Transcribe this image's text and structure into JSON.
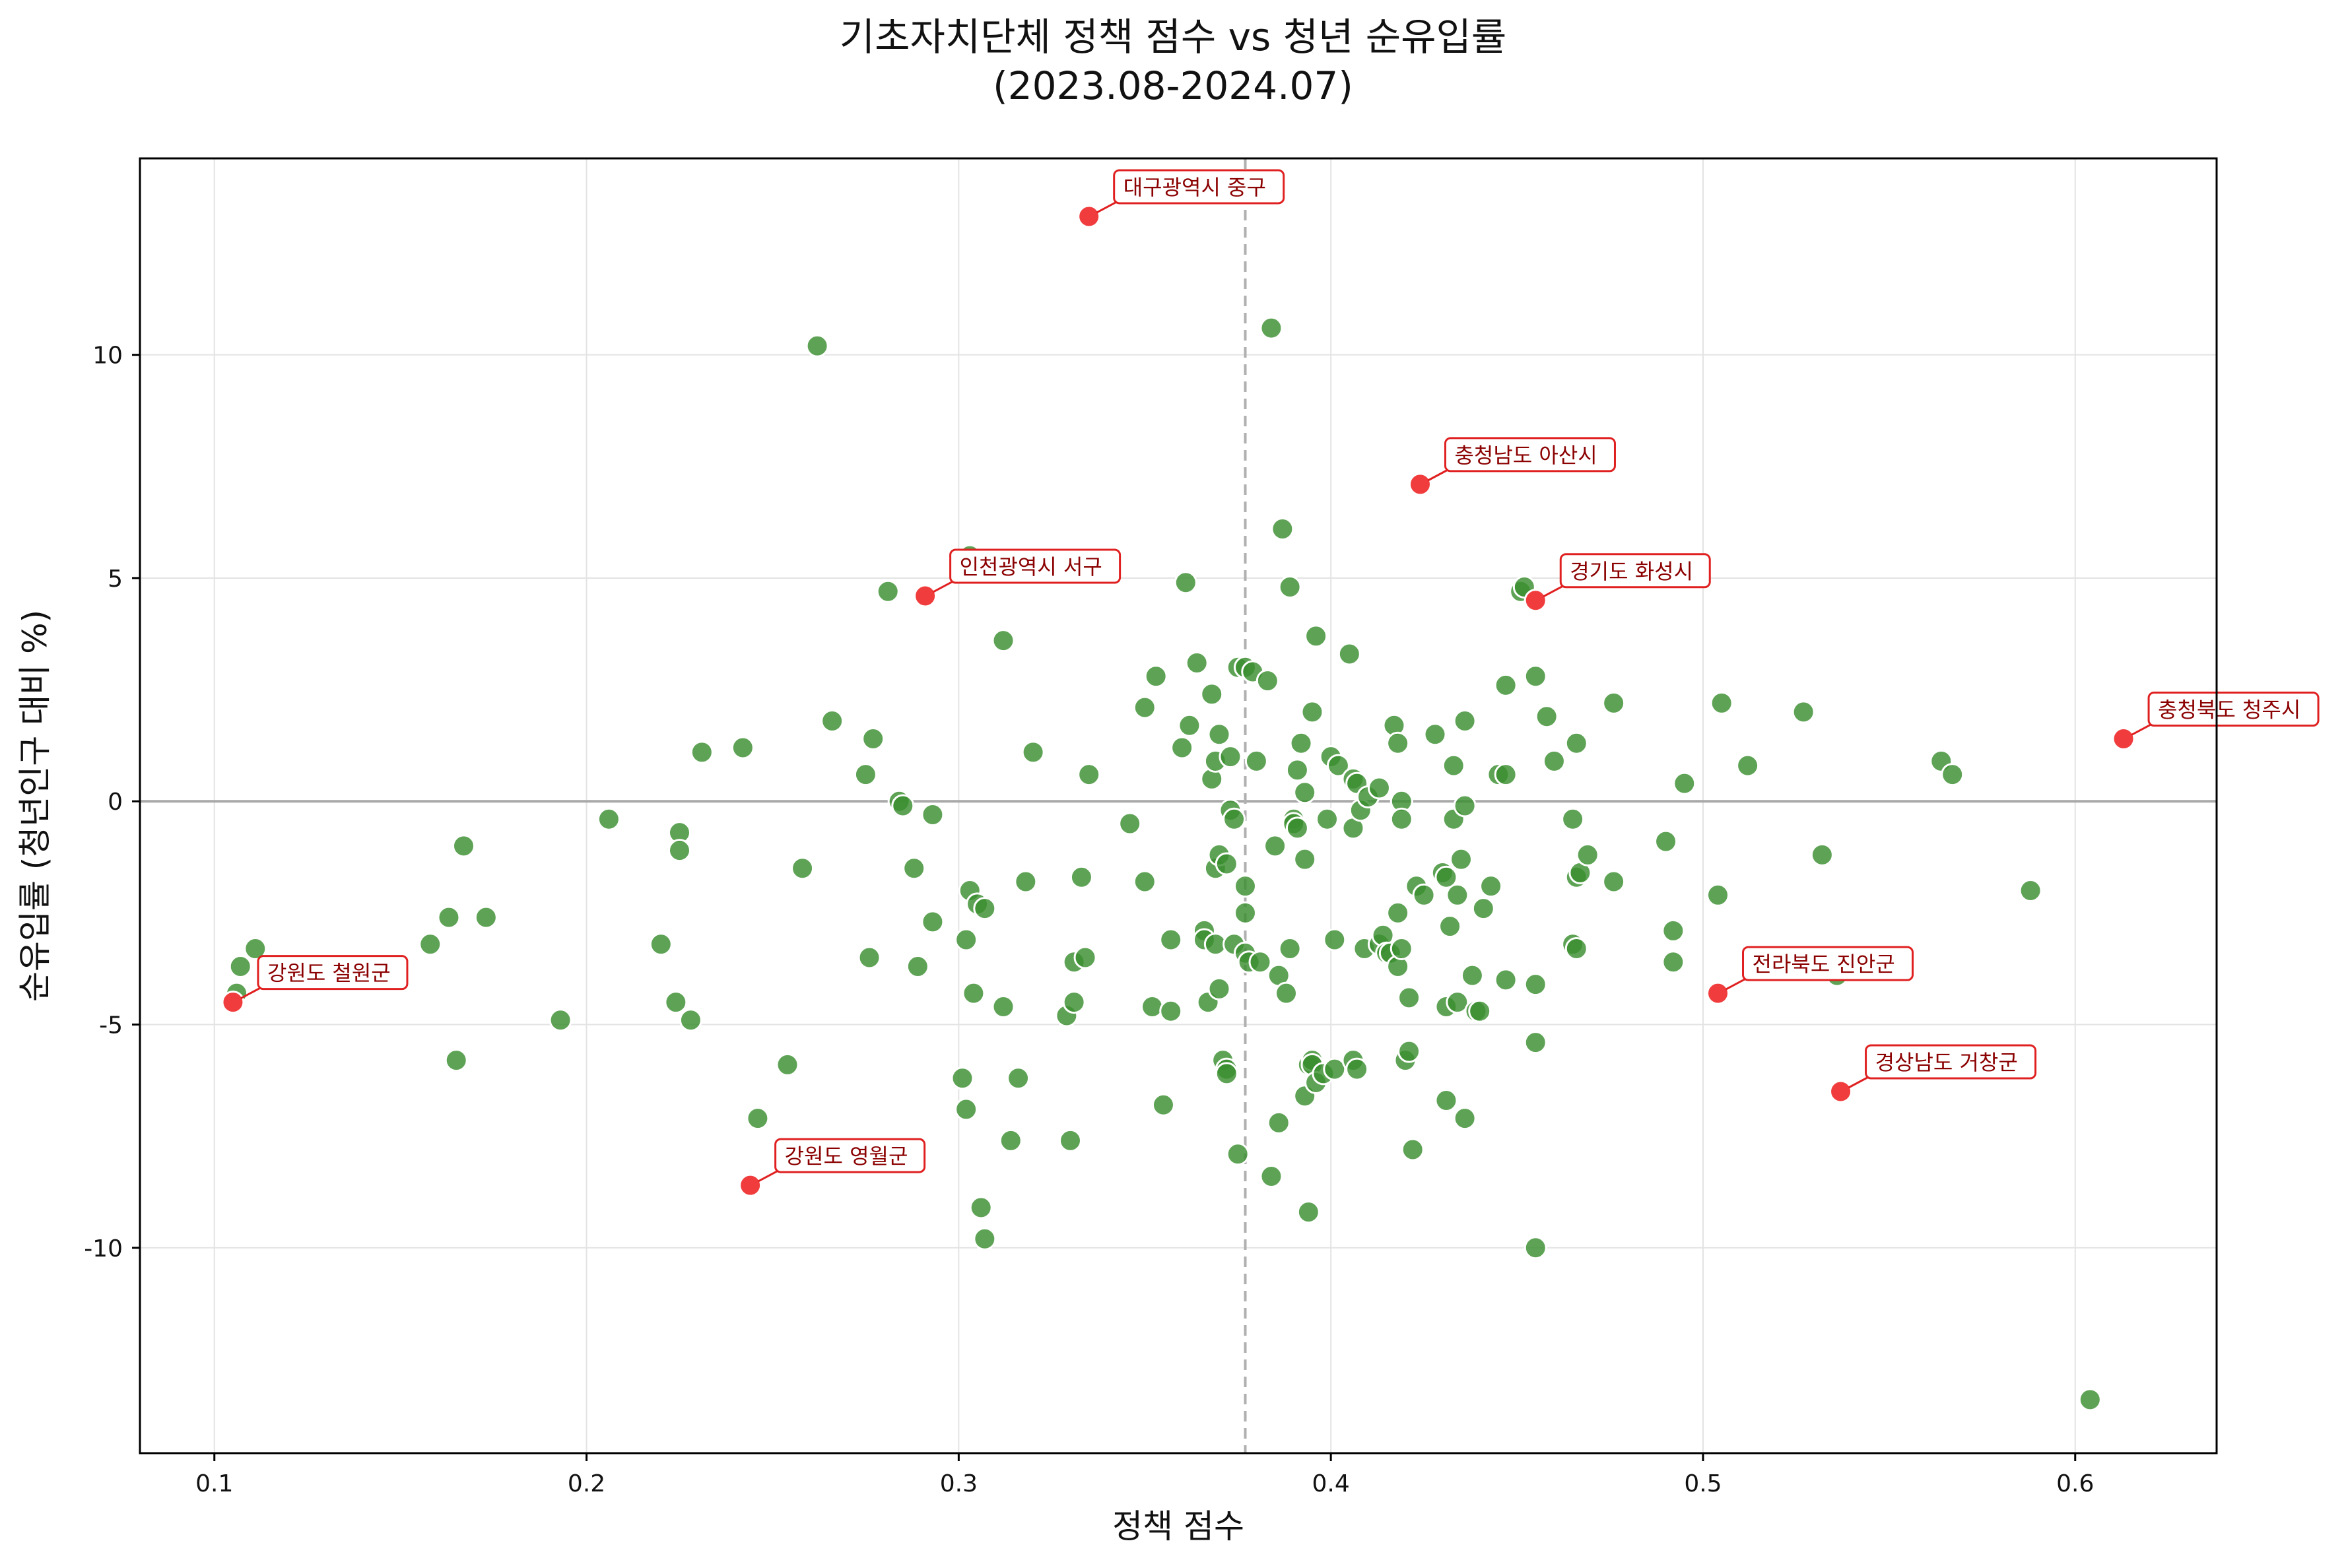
{
  "chart_data": {
    "type": "scatter",
    "title_line1": "기초자치단체 정책 점수 vs 청년 순유입률",
    "title_line2": "(2023.08-2024.07)",
    "xlabel": "정책 점수",
    "ylabel": "순유입률 (청년인구 대비 %)",
    "xlim": [
      0.08,
      0.638
    ],
    "ylim": [
      -14.6,
      14.4
    ],
    "xticks": [
      0.1,
      0.2,
      0.3,
      0.4,
      0.5,
      0.6
    ],
    "xtick_labels": [
      "0.1",
      "0.2",
      "0.3",
      "0.4",
      "0.5",
      "0.6"
    ],
    "yticks": [
      10,
      5,
      0,
      -5,
      -10
    ],
    "ytick_labels": [
      "10",
      "5",
      "0",
      "-5",
      "-10"
    ],
    "grid": true,
    "reference_lines": {
      "horizontal_y": 0,
      "vertical_x_dashed": 0.377
    },
    "colors": {
      "normal": "#3a8f2f",
      "highlight": "#f03c3c",
      "annotation_border": "#e02020"
    },
    "series": [
      {
        "points": [
          [
            0.107,
            -3.7
          ],
          [
            0.111,
            -3.3
          ],
          [
            0.106,
            -4.3
          ],
          [
            0.158,
            -3.2
          ],
          [
            0.163,
            -2.6
          ],
          [
            0.167,
            -1.0
          ],
          [
            0.173,
            -2.6
          ],
          [
            0.165,
            -5.8
          ],
          [
            0.193,
            -4.9
          ],
          [
            0.206,
            -0.4
          ],
          [
            0.22,
            -3.2
          ],
          [
            0.225,
            -0.7
          ],
          [
            0.225,
            -1.1
          ],
          [
            0.224,
            -4.5
          ],
          [
            0.228,
            -4.9
          ],
          [
            0.231,
            1.1
          ],
          [
            0.242,
            1.2
          ],
          [
            0.246,
            -7.1
          ],
          [
            0.254,
            -5.9
          ],
          [
            0.258,
            -1.5
          ],
          [
            0.262,
            10.2
          ],
          [
            0.266,
            1.8
          ],
          [
            0.275,
            0.6
          ],
          [
            0.277,
            1.4
          ],
          [
            0.276,
            -3.5
          ],
          [
            0.281,
            4.7
          ],
          [
            0.284,
            0.0
          ],
          [
            0.285,
            -0.1
          ],
          [
            0.288,
            -1.5
          ],
          [
            0.289,
            -3.7
          ],
          [
            0.293,
            -2.7
          ],
          [
            0.293,
            -0.3
          ],
          [
            0.303,
            5.5
          ],
          [
            0.301,
            -6.2
          ],
          [
            0.302,
            -6.9
          ],
          [
            0.302,
            -3.1
          ],
          [
            0.303,
            -2.0
          ],
          [
            0.305,
            -2.3
          ],
          [
            0.307,
            -2.4
          ],
          [
            0.304,
            -4.3
          ],
          [
            0.306,
            -9.1
          ],
          [
            0.307,
            -9.8
          ],
          [
            0.312,
            3.6
          ],
          [
            0.312,
            -4.6
          ],
          [
            0.314,
            -7.6
          ],
          [
            0.316,
            -6.2
          ],
          [
            0.318,
            -1.8
          ],
          [
            0.32,
            1.1
          ],
          [
            0.329,
            -4.8
          ],
          [
            0.33,
            -7.6
          ],
          [
            0.331,
            -3.6
          ],
          [
            0.331,
            -4.5
          ],
          [
            0.333,
            -1.7
          ],
          [
            0.334,
            -3.5
          ],
          [
            0.335,
            0.6
          ],
          [
            0.346,
            -0.5
          ],
          [
            0.35,
            -1.8
          ],
          [
            0.35,
            2.1
          ],
          [
            0.352,
            -4.6
          ],
          [
            0.353,
            2.8
          ],
          [
            0.355,
            -6.8
          ],
          [
            0.357,
            -3.1
          ],
          [
            0.357,
            -4.7
          ],
          [
            0.36,
            1.2
          ],
          [
            0.361,
            4.9
          ],
          [
            0.362,
            1.7
          ],
          [
            0.364,
            3.1
          ],
          [
            0.366,
            -2.9
          ],
          [
            0.366,
            -3.1
          ],
          [
            0.367,
            -4.5
          ],
          [
            0.368,
            0.5
          ],
          [
            0.368,
            2.4
          ],
          [
            0.369,
            0.9
          ],
          [
            0.369,
            -1.5
          ],
          [
            0.369,
            -3.2
          ],
          [
            0.37,
            -1.2
          ],
          [
            0.37,
            1.5
          ],
          [
            0.37,
            -4.2
          ],
          [
            0.371,
            -5.8
          ],
          [
            0.372,
            -6.0
          ],
          [
            0.372,
            -6.1
          ],
          [
            0.372,
            -1.4
          ],
          [
            0.373,
            1.0
          ],
          [
            0.373,
            -0.2
          ],
          [
            0.374,
            -0.4
          ],
          [
            0.374,
            -3.2
          ],
          [
            0.375,
            3.0
          ],
          [
            0.375,
            -7.9
          ],
          [
            0.377,
            3.0
          ],
          [
            0.377,
            -1.9
          ],
          [
            0.377,
            -2.5
          ],
          [
            0.377,
            -3.4
          ],
          [
            0.378,
            -3.6
          ],
          [
            0.379,
            2.9
          ],
          [
            0.38,
            0.9
          ],
          [
            0.381,
            -3.6
          ],
          [
            0.383,
            2.7
          ],
          [
            0.384,
            -8.4
          ],
          [
            0.384,
            10.6
          ],
          [
            0.385,
            -1.0
          ],
          [
            0.386,
            -7.2
          ],
          [
            0.386,
            -3.9
          ],
          [
            0.387,
            6.1
          ],
          [
            0.388,
            -4.3
          ],
          [
            0.389,
            -3.3
          ],
          [
            0.389,
            4.8
          ],
          [
            0.39,
            -0.4
          ],
          [
            0.39,
            -0.5
          ],
          [
            0.391,
            -0.6
          ],
          [
            0.391,
            0.7
          ],
          [
            0.392,
            1.3
          ],
          [
            0.393,
            -1.3
          ],
          [
            0.393,
            0.2
          ],
          [
            0.393,
            -6.6
          ],
          [
            0.394,
            -5.9
          ],
          [
            0.394,
            -9.2
          ],
          [
            0.395,
            -5.8
          ],
          [
            0.395,
            -5.9
          ],
          [
            0.395,
            2.0
          ],
          [
            0.396,
            -6.3
          ],
          [
            0.396,
            3.7
          ],
          [
            0.398,
            -6.1
          ],
          [
            0.399,
            -0.4
          ],
          [
            0.4,
            1.0
          ],
          [
            0.401,
            -6.0
          ],
          [
            0.401,
            -3.1
          ],
          [
            0.402,
            0.8
          ],
          [
            0.405,
            3.3
          ],
          [
            0.406,
            0.5
          ],
          [
            0.406,
            -0.6
          ],
          [
            0.406,
            -5.8
          ],
          [
            0.407,
            -6.0
          ],
          [
            0.407,
            0.4
          ],
          [
            0.408,
            -0.2
          ],
          [
            0.409,
            -3.3
          ],
          [
            0.41,
            0.1
          ],
          [
            0.413,
            -3.2
          ],
          [
            0.413,
            0.3
          ],
          [
            0.414,
            -3.0
          ],
          [
            0.415,
            -3.4
          ],
          [
            0.416,
            -3.4
          ],
          [
            0.417,
            1.7
          ],
          [
            0.418,
            -3.7
          ],
          [
            0.418,
            -2.5
          ],
          [
            0.418,
            1.3
          ],
          [
            0.419,
            0.0
          ],
          [
            0.419,
            -0.4
          ],
          [
            0.419,
            -3.3
          ],
          [
            0.42,
            -5.8
          ],
          [
            0.421,
            -4.4
          ],
          [
            0.421,
            -5.6
          ],
          [
            0.422,
            -7.8
          ],
          [
            0.423,
            -1.9
          ],
          [
            0.425,
            -2.1
          ],
          [
            0.428,
            1.5
          ],
          [
            0.43,
            -1.6
          ],
          [
            0.431,
            -1.7
          ],
          [
            0.431,
            -6.7
          ],
          [
            0.431,
            -4.6
          ],
          [
            0.432,
            -2.8
          ],
          [
            0.433,
            -0.4
          ],
          [
            0.433,
            0.8
          ],
          [
            0.434,
            -4.5
          ],
          [
            0.434,
            -2.1
          ],
          [
            0.435,
            -1.3
          ],
          [
            0.436,
            1.8
          ],
          [
            0.436,
            -7.1
          ],
          [
            0.436,
            -0.1
          ],
          [
            0.438,
            -3.9
          ],
          [
            0.439,
            -4.7
          ],
          [
            0.44,
            -4.7
          ],
          [
            0.441,
            -2.4
          ],
          [
            0.443,
            -1.9
          ],
          [
            0.445,
            0.6
          ],
          [
            0.447,
            0.6
          ],
          [
            0.447,
            2.6
          ],
          [
            0.447,
            -4.0
          ],
          [
            0.451,
            4.7
          ],
          [
            0.452,
            4.8
          ],
          [
            0.455,
            2.8
          ],
          [
            0.455,
            -4.1
          ],
          [
            0.455,
            -10.0
          ],
          [
            0.455,
            -5.4
          ],
          [
            0.458,
            1.9
          ],
          [
            0.46,
            0.9
          ],
          [
            0.465,
            -0.4
          ],
          [
            0.465,
            -3.2
          ],
          [
            0.466,
            -3.3
          ],
          [
            0.466,
            1.3
          ],
          [
            0.466,
            -1.7
          ],
          [
            0.467,
            -1.6
          ],
          [
            0.469,
            -1.2
          ],
          [
            0.476,
            2.2
          ],
          [
            0.476,
            -1.8
          ],
          [
            0.49,
            -0.9
          ],
          [
            0.492,
            -3.6
          ],
          [
            0.492,
            -2.9
          ],
          [
            0.495,
            0.4
          ],
          [
            0.504,
            -2.1
          ],
          [
            0.505,
            2.2
          ],
          [
            0.512,
            0.8
          ],
          [
            0.527,
            2.0
          ],
          [
            0.532,
            -1.2
          ],
          [
            0.536,
            -3.9
          ],
          [
            0.564,
            0.9
          ],
          [
            0.567,
            0.6
          ],
          [
            0.588,
            -2.0
          ],
          [
            0.604,
            -13.4
          ]
        ]
      }
    ],
    "highlights": [
      {
        "name": "대구광역시 중구",
        "x": 0.335,
        "y": 13.1
      },
      {
        "name": "충청남도 아산시",
        "x": 0.424,
        "y": 7.1
      },
      {
        "name": "인천광역시 서구",
        "x": 0.291,
        "y": 4.6
      },
      {
        "name": "경기도 화성시",
        "x": 0.455,
        "y": 4.5
      },
      {
        "name": "충청북도 청주시",
        "x": 0.613,
        "y": 1.4
      },
      {
        "name": "강원도 철원군",
        "x": 0.105,
        "y": -4.5
      },
      {
        "name": "전라북도 진안군",
        "x": 0.504,
        "y": -4.3
      },
      {
        "name": "경상남도 거창군",
        "x": 0.537,
        "y": -6.5
      },
      {
        "name": "강원도 영월군",
        "x": 0.244,
        "y": -8.6
      }
    ]
  }
}
